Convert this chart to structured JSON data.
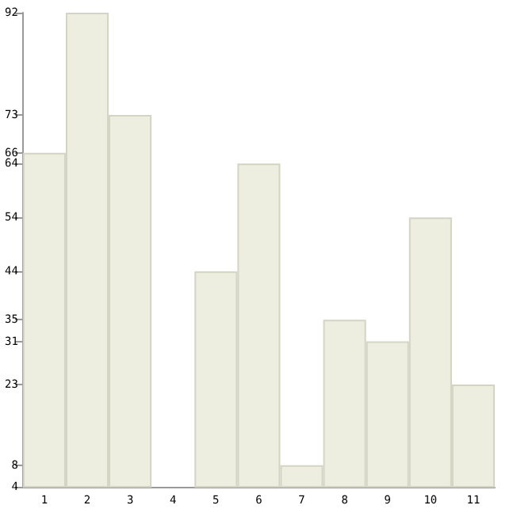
{
  "chart_data": {
    "type": "bar",
    "categories": [
      "1",
      "2",
      "3",
      "4",
      "5",
      "6",
      "7",
      "8",
      "9",
      "10",
      "11"
    ],
    "values": [
      66,
      92,
      73,
      4,
      44,
      64,
      8,
      35,
      31,
      54,
      23
    ],
    "color": "#eeeee0",
    "ylim": [
      4,
      92
    ],
    "yticks": [
      4,
      8,
      23,
      31,
      35,
      44,
      54,
      64,
      66,
      73,
      92
    ],
    "grid": false
  }
}
